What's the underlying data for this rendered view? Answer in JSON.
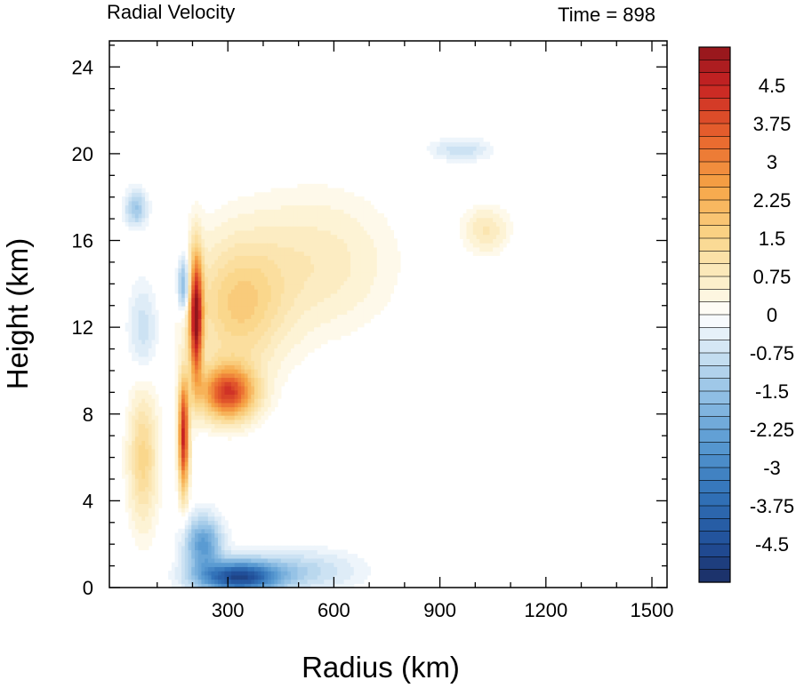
{
  "chart_data": {
    "type": "heatmap",
    "title": "Radial Velocity",
    "subtitle": "Time = 898",
    "xlabel": "Radius (km)",
    "ylabel": "Height (km)",
    "xlim": [
      0,
      1500
    ],
    "ylim": [
      0,
      25.2
    ],
    "x_ticks": [
      300,
      600,
      900,
      1200,
      1500
    ],
    "y_ticks": [
      0,
      4,
      8,
      12,
      16,
      20,
      24
    ],
    "colorbar": {
      "min": -5.25,
      "max": 5.25,
      "step": 0.25,
      "labels": [
        4.5,
        3.75,
        3,
        2.25,
        1.5,
        0.75,
        0,
        -0.75,
        -1.5,
        -2.25,
        -3,
        -3.75,
        -4.5
      ],
      "label_text": [
        "4.5",
        "3.75",
        "3",
        "2.25",
        "1.5",
        "0.75",
        "0",
        "-0.75",
        "-1.5",
        "-2.25",
        "-3",
        "-3.75",
        "-4.5"
      ]
    },
    "features": [
      {
        "kind": "outflow",
        "r_km": 300,
        "z_km": 9,
        "value": 4.0,
        "dr": 75,
        "dz": 1.2
      },
      {
        "kind": "outflow",
        "r_km": 210,
        "z_km": 12.5,
        "value": 5.0,
        "dr": 18,
        "dz": 2.8
      },
      {
        "kind": "outflow",
        "r_km": 175,
        "z_km": 7,
        "value": 4.5,
        "dr": 14,
        "dz": 2.5
      },
      {
        "kind": "outflow",
        "r_km": 330,
        "z_km": 13,
        "value": 1.6,
        "dr": 130,
        "dz": 3
      },
      {
        "kind": "outflow",
        "r_km": 550,
        "z_km": 15,
        "value": 0.8,
        "dr": 200,
        "dz": 3
      },
      {
        "kind": "outflow",
        "r_km": 1030,
        "z_km": 16.5,
        "value": 0.9,
        "dr": 60,
        "dz": 1
      },
      {
        "kind": "outflow",
        "r_km": 60,
        "z_km": 6,
        "value": 1.5,
        "dr": 40,
        "dz": 3
      },
      {
        "kind": "inflow",
        "r_km": 330,
        "z_km": 0.5,
        "value": -4.5,
        "dr": 110,
        "dz": 0.7
      },
      {
        "kind": "inflow",
        "r_km": 230,
        "z_km": 2,
        "value": -2.5,
        "dr": 50,
        "dz": 1.2
      },
      {
        "kind": "inflow",
        "r_km": 500,
        "z_km": 0.8,
        "value": -1.0,
        "dr": 160,
        "dz": 0.9
      },
      {
        "kind": "inflow",
        "r_km": 175,
        "z_km": 14,
        "value": -2.0,
        "dr": 18,
        "dz": 1.2
      },
      {
        "kind": "inflow",
        "r_km": 960,
        "z_km": 20.2,
        "value": -0.8,
        "dr": 80,
        "dz": 0.5
      },
      {
        "kind": "inflow",
        "r_km": 40,
        "z_km": 17.5,
        "value": -1.4,
        "dr": 30,
        "dz": 0.8
      },
      {
        "kind": "inflow",
        "r_km": 60,
        "z_km": 12,
        "value": -0.8,
        "dr": 40,
        "dz": 2
      }
    ]
  }
}
